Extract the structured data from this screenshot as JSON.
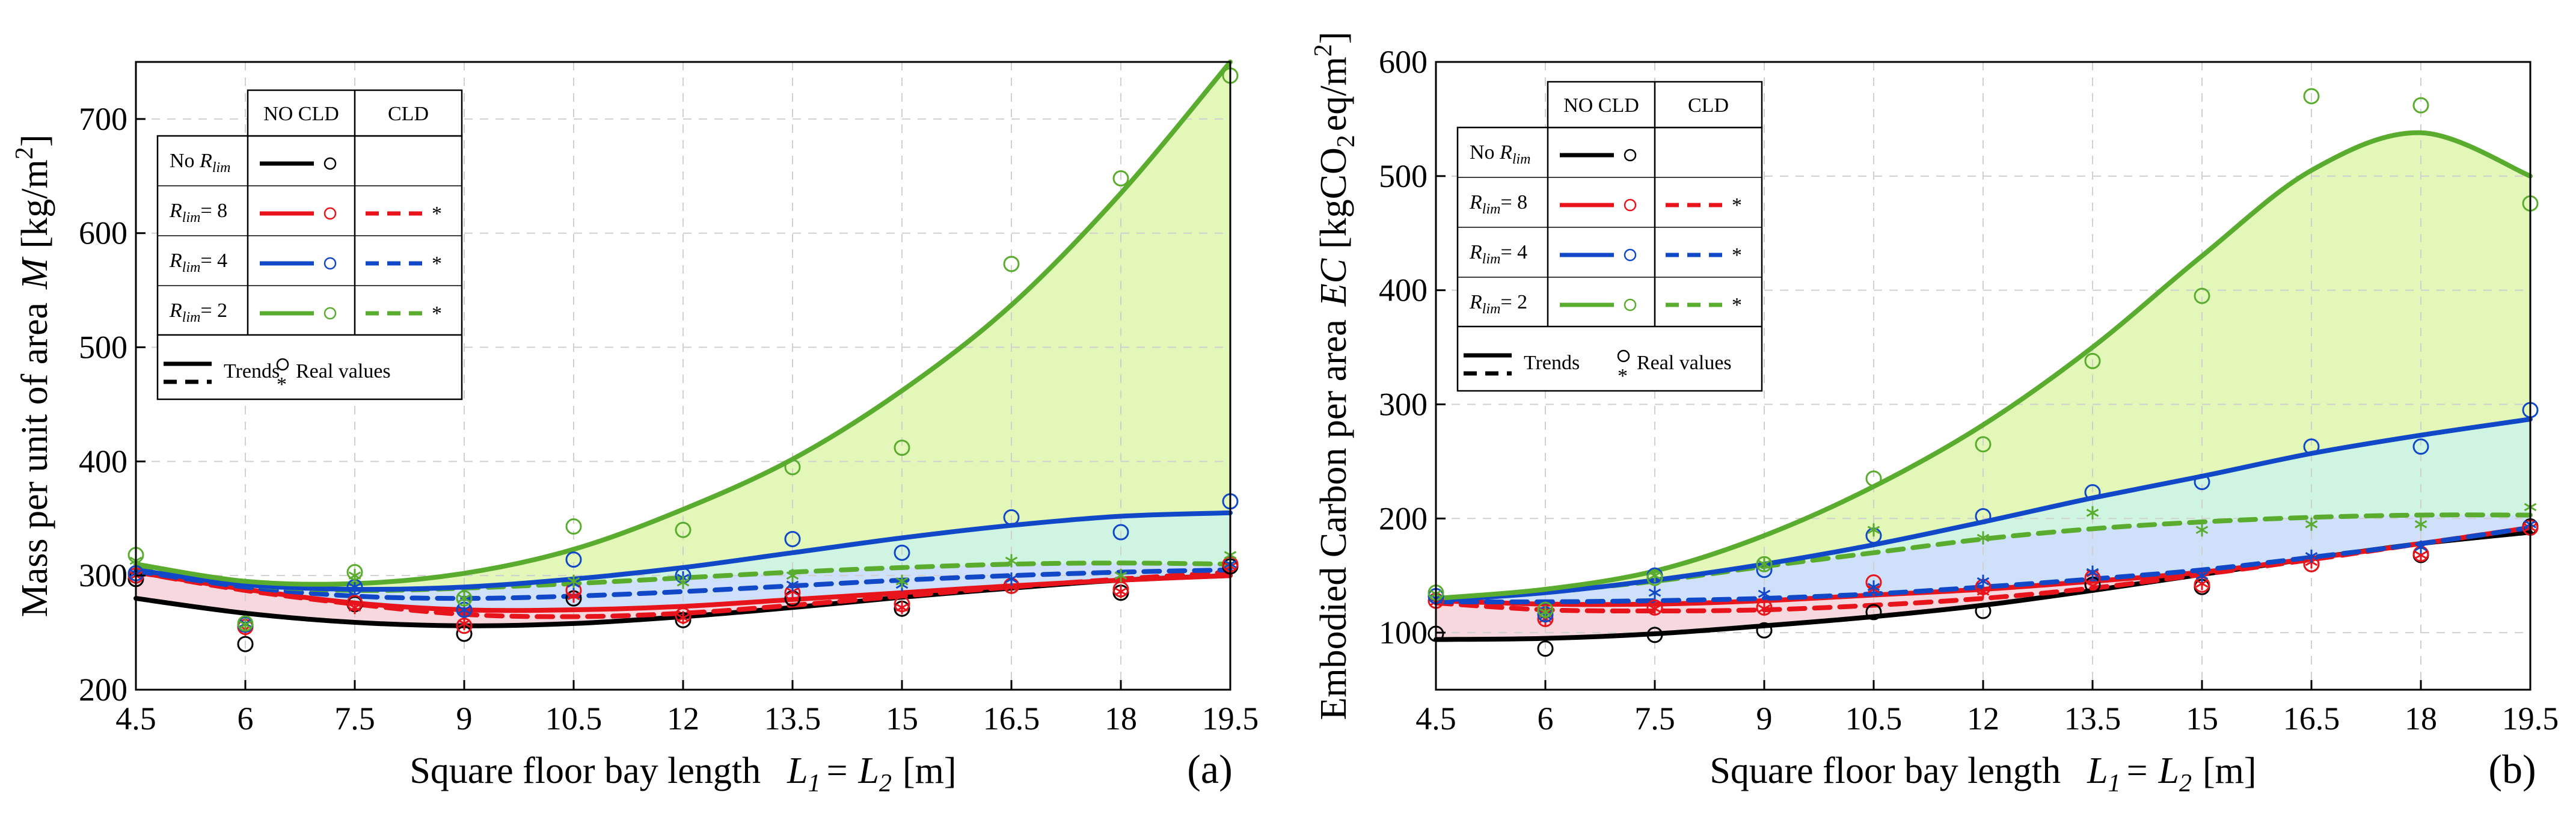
{
  "figure": {
    "colors": {
      "black": "#000000",
      "red": "#e8141b",
      "blue": "#1048c8",
      "green": "#5aac2e",
      "fill_green": "#e2f7b8",
      "fill_teal": "#cff5e2",
      "fill_blue": "#cfe0fa",
      "fill_pink": "#f7d8df",
      "grid": "#d0d0d0"
    },
    "legend": {
      "col_noclD": "NO CLD",
      "col_cld": "CLD",
      "row_norlim_pre": "No ",
      "rlim_R": "R",
      "rlim_sub": "lim",
      "row_8_suffix": "= 8",
      "row_4_suffix": "= 4",
      "row_2_suffix": "= 2",
      "trends": "Trends",
      "real_values": "Real values"
    }
  },
  "chart_data": [
    {
      "panel": "(a)",
      "type": "line",
      "xlabel_main": "Square floor bay length",
      "xlabel_l1": "L",
      "xlabel_s1": "1",
      "xlabel_eq": "=",
      "xlabel_l2": "L",
      "xlabel_s2": "2",
      "xlabel_unit": "[m]",
      "ylabel_main": "Mass per unit of area",
      "ylabel_sym": "M",
      "ylabel_unit": "[kg/m",
      "ylabel_sup": "2",
      "ylabel_close": "]",
      "xlim": [
        4.5,
        19.5
      ],
      "ylim": [
        200,
        750
      ],
      "xticks": [
        4.5,
        6,
        7.5,
        9,
        10.5,
        12,
        13.5,
        15,
        16.5,
        18,
        19.5
      ],
      "xtick_labels": [
        "4.5",
        "6",
        "7.5",
        "9",
        "10.5",
        "12",
        "13.5",
        "15",
        "16.5",
        "18",
        "19.5"
      ],
      "yticks": [
        200,
        300,
        400,
        500,
        600,
        700
      ],
      "ytick_labels": [
        "200",
        "300",
        "400",
        "500",
        "600",
        "700"
      ],
      "x": [
        4.5,
        6,
        7.5,
        9,
        10.5,
        12,
        13.5,
        15,
        16.5,
        18,
        19.5
      ],
      "series": [
        {
          "name": "No Rlim NO CLD trend",
          "color": "black",
          "dash": false,
          "kind": "trend",
          "values": [
            280,
            267,
            259,
            256,
            258,
            264,
            272,
            281,
            289,
            296,
            300
          ]
        },
        {
          "name": "Rlim=8 NO CLD trend",
          "color": "red",
          "dash": false,
          "kind": "trend",
          "values": [
            303,
            288,
            276,
            270,
            270,
            273,
            279,
            285,
            291,
            296,
            300
          ]
        },
        {
          "name": "Rlim=8 CLD trend",
          "color": "red",
          "dash": true,
          "kind": "trend",
          "values": [
            303,
            287,
            275,
            266,
            264,
            267,
            274,
            282,
            290,
            297,
            303
          ]
        },
        {
          "name": "Rlim=4 CLD trend",
          "color": "blue",
          "dash": true,
          "kind": "trend",
          "values": [
            304,
            290,
            282,
            280,
            282,
            286,
            291,
            296,
            300,
            303,
            305
          ]
        },
        {
          "name": "Rlim=2 CLD trend",
          "color": "green",
          "dash": true,
          "kind": "trend",
          "values": [
            306,
            292,
            287,
            289,
            293,
            298,
            303,
            307,
            310,
            311,
            310
          ]
        },
        {
          "name": "Rlim=4 NO CLD trend",
          "color": "blue",
          "dash": false,
          "kind": "trend",
          "values": [
            305,
            292,
            288,
            290,
            297,
            307,
            320,
            333,
            344,
            352,
            355
          ]
        },
        {
          "name": "Rlim=2 NO CLD trend",
          "color": "green",
          "dash": false,
          "kind": "trend",
          "values": [
            310,
            295,
            293,
            302,
            323,
            358,
            402,
            462,
            537,
            635,
            750
          ]
        },
        {
          "name": "No Rlim NO CLD real",
          "color": "black",
          "kind": "circle",
          "values": [
            297,
            240,
            275,
            249,
            280,
            261,
            280,
            271,
            291,
            285,
            308
          ]
        },
        {
          "name": "Rlim=8 NO CLD real",
          "color": "red",
          "kind": "circle",
          "values": [
            300,
            255,
            276,
            256,
            287,
            265,
            285,
            275,
            291,
            288,
            310
          ]
        },
        {
          "name": "Rlim=8 CLD real",
          "color": "red",
          "kind": "star",
          "values": [
            300,
            253,
            272,
            258,
            282,
            263,
            286,
            272,
            290,
            286,
            308
          ]
        },
        {
          "name": "Rlim=4 NO CLD real",
          "color": "blue",
          "kind": "circle",
          "values": [
            302,
            257,
            290,
            270,
            314,
            300,
            332,
            320,
            351,
            338,
            365
          ]
        },
        {
          "name": "Rlim=4 CLD real",
          "color": "blue",
          "kind": "star",
          "values": [
            302,
            258,
            290,
            270,
            293,
            298,
            292,
            292,
            297,
            300,
            310
          ]
        },
        {
          "name": "Rlim=2 NO CLD real",
          "color": "green",
          "kind": "circle",
          "values": [
            318,
            258,
            303,
            280,
            343,
            340,
            395,
            412,
            573,
            648,
            738
          ]
        },
        {
          "name": "Rlim=2 CLD real",
          "color": "green",
          "kind": "star",
          "values": [
            313,
            257,
            300,
            280,
            295,
            294,
            300,
            295,
            313,
            300,
            318
          ]
        }
      ]
    },
    {
      "panel": "(b)",
      "type": "line",
      "xlabel_main": "Square floor bay length",
      "xlabel_l1": "L",
      "xlabel_s1": "1",
      "xlabel_eq": "=",
      "xlabel_l2": "L",
      "xlabel_s2": "2",
      "xlabel_unit": "[m]",
      "ylabel_main": "Embodied Carbon per area",
      "ylabel_sym": "EC",
      "ylabel_unit": "[kgCO",
      "ylabel_sub": "2",
      "ylabel_unit2": "eq/m",
      "ylabel_sup": "2",
      "ylabel_close": "]",
      "xlim": [
        4.5,
        19.5
      ],
      "ylim": [
        50,
        600
      ],
      "xticks": [
        4.5,
        6,
        7.5,
        9,
        10.5,
        12,
        13.5,
        15,
        16.5,
        18,
        19.5
      ],
      "xtick_labels": [
        "4.5",
        "6",
        "7.5",
        "9",
        "10.5",
        "12",
        "13.5",
        "15",
        "16.5",
        "18",
        "19.5"
      ],
      "yticks": [
        100,
        200,
        300,
        400,
        500,
        600
      ],
      "ytick_labels": [
        "100",
        "200",
        "300",
        "400",
        "500",
        "600"
      ],
      "x": [
        4.5,
        6,
        7.5,
        9,
        10.5,
        12,
        13.5,
        15,
        16.5,
        18,
        19.5
      ],
      "series": [
        {
          "name": "No Rlim NO CLD trend",
          "color": "black",
          "dash": false,
          "kind": "trend",
          "values": [
            94,
            95,
            99,
            106,
            114,
            124,
            137,
            151,
            165,
            178,
            188
          ]
        },
        {
          "name": "Rlim=8 CLD trend",
          "color": "red",
          "dash": true,
          "kind": "trend",
          "values": [
            126,
            120,
            119,
            120,
            124,
            130,
            139,
            151,
            164,
            178,
            192
          ]
        },
        {
          "name": "Rlim=8 NO CLD trend",
          "color": "red",
          "dash": false,
          "kind": "trend",
          "values": [
            128,
            125,
            125,
            128,
            133,
            138,
            145,
            153,
            165,
            178,
            192
          ]
        },
        {
          "name": "Rlim=4 CLD trend",
          "color": "blue",
          "dash": true,
          "kind": "trend",
          "values": [
            127,
            127,
            128,
            130,
            134,
            140,
            147,
            155,
            166,
            178,
            192
          ]
        },
        {
          "name": "Rlim=2 CLD trend",
          "color": "green",
          "dash": true,
          "kind": "trend",
          "values": [
            130,
            136,
            145,
            158,
            170,
            182,
            191,
            197,
            201,
            203,
            203
          ]
        },
        {
          "name": "Rlim=4 NO CLD trend",
          "color": "blue",
          "dash": false,
          "kind": "trend",
          "values": [
            128,
            135,
            146,
            160,
            177,
            197,
            218,
            237,
            257,
            273,
            287
          ]
        },
        {
          "name": "Rlim=2 NO CLD trend",
          "color": "green",
          "dash": false,
          "kind": "trend",
          "values": [
            130,
            138,
            154,
            185,
            228,
            282,
            350,
            430,
            505,
            538,
            500
          ]
        },
        {
          "name": "No Rlim NO CLD real",
          "color": "black",
          "kind": "circle",
          "values": [
            99,
            86,
            98,
            102,
            118,
            119,
            142,
            140,
            160,
            168,
            193
          ]
        },
        {
          "name": "Rlim=8 NO CLD real",
          "color": "red",
          "kind": "circle",
          "values": [
            128,
            112,
            122,
            122,
            144,
            140,
            148,
            142,
            160,
            169,
            192
          ]
        },
        {
          "name": "Rlim=8 CLD real",
          "color": "red",
          "kind": "star",
          "values": [
            127,
            112,
            121,
            121,
            138,
            136,
            152,
            143,
            162,
            168,
            192
          ]
        },
        {
          "name": "Rlim=4 NO CLD real",
          "color": "blue",
          "kind": "circle",
          "values": [
            132,
            116,
            150,
            155,
            185,
            202,
            223,
            232,
            263,
            263,
            295
          ]
        },
        {
          "name": "Rlim=4 CLD real",
          "color": "blue",
          "kind": "star",
          "values": [
            130,
            115,
            135,
            134,
            140,
            145,
            153,
            150,
            167,
            175,
            195
          ]
        },
        {
          "name": "Rlim=2 NO CLD real",
          "color": "green",
          "kind": "circle",
          "values": [
            135,
            120,
            148,
            160,
            235,
            265,
            338,
            395,
            570,
            562,
            476
          ]
        },
        {
          "name": "Rlim=2 CLD real",
          "color": "green",
          "kind": "star",
          "values": [
            134,
            118,
            150,
            160,
            190,
            183,
            205,
            190,
            195,
            195,
            210
          ]
        }
      ]
    }
  ]
}
